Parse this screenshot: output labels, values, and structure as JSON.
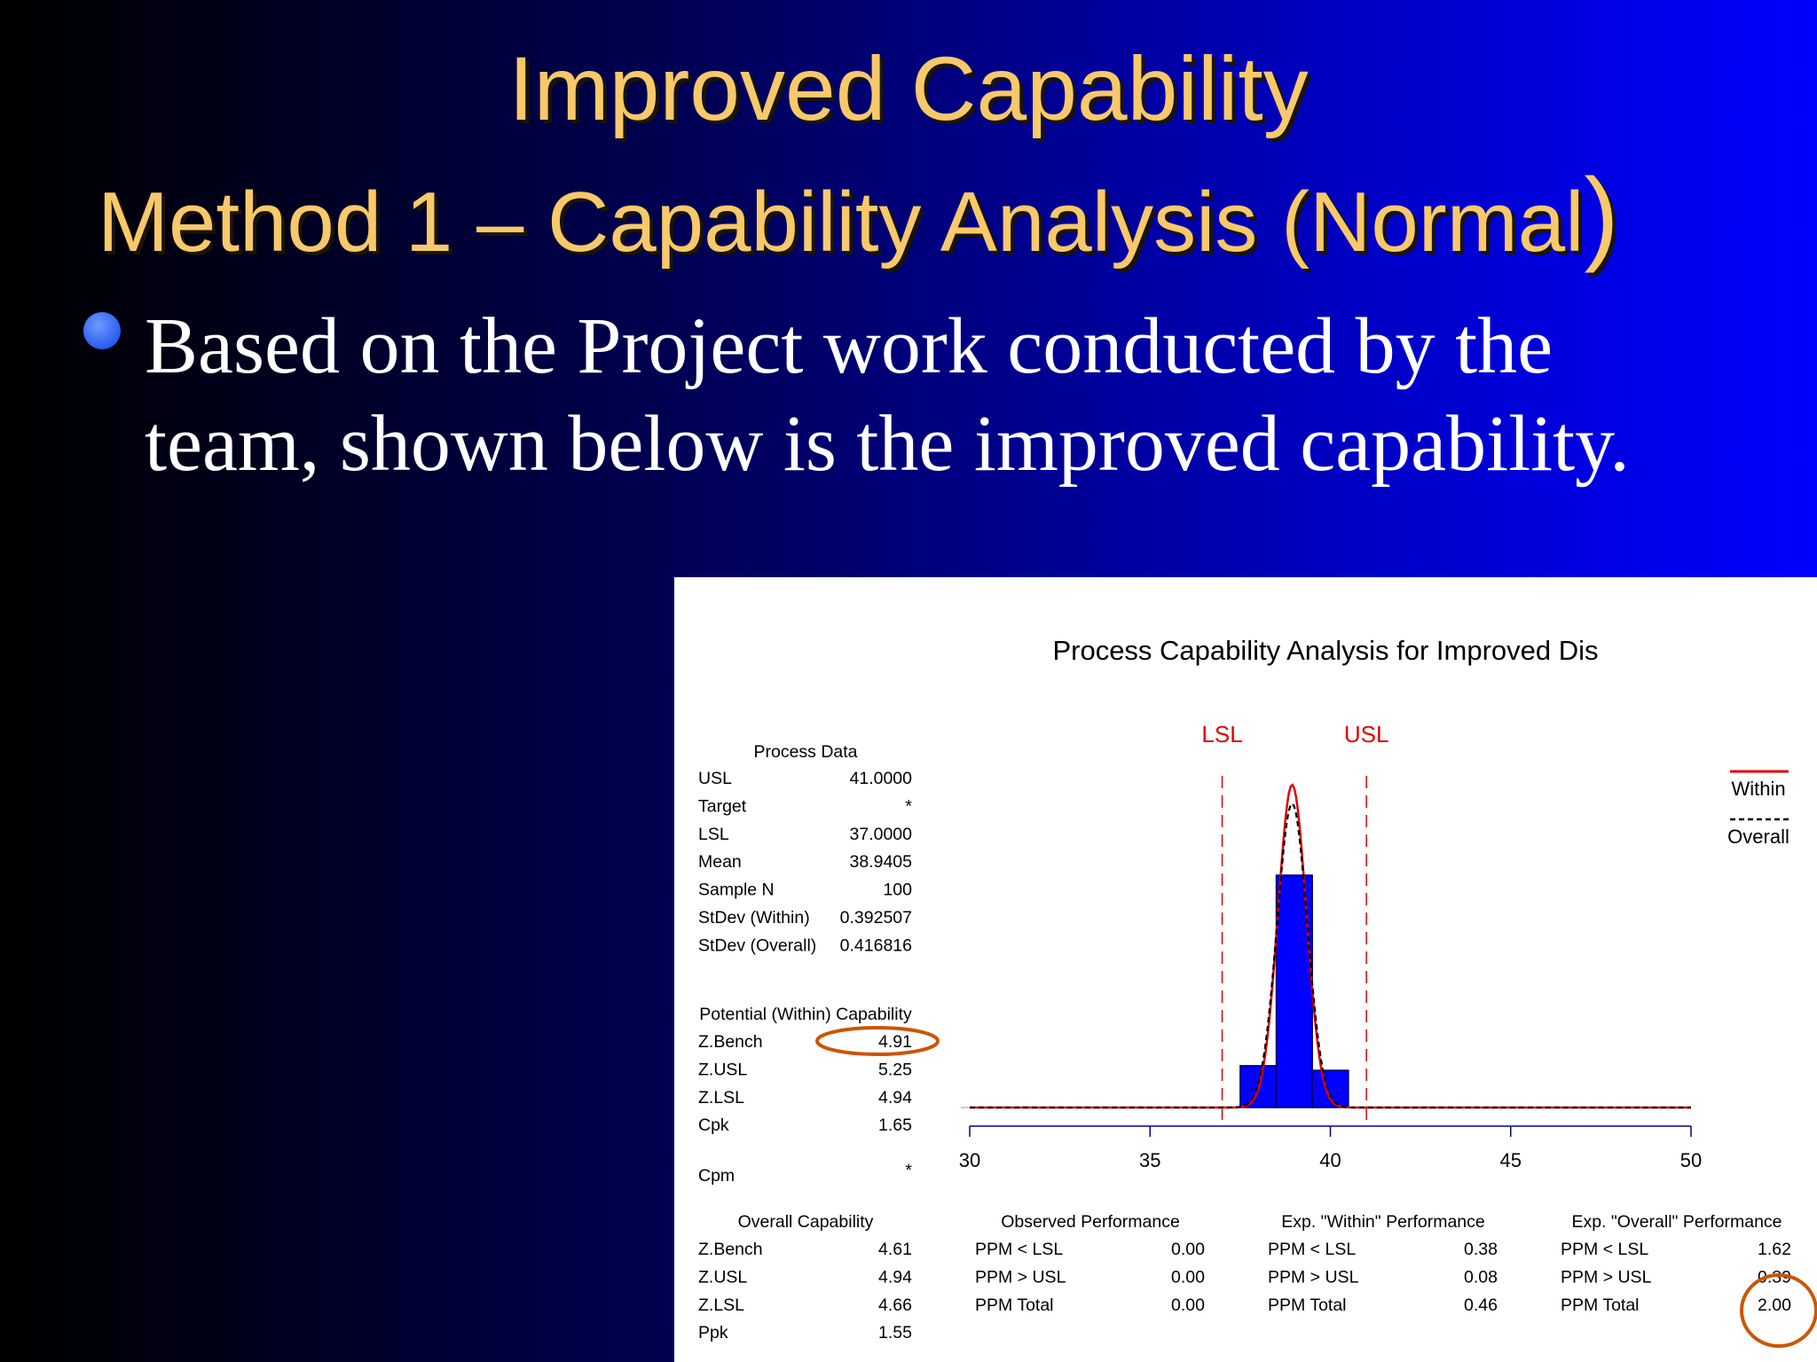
{
  "slide": {
    "title_line1": "Improved Capability",
    "title_line2_text": "Method 1 – Capability Analysis (Normal",
    "title_line2_paren": ")",
    "bullet": "Based on the Project work conducted by the team, shown below is the improved capability."
  },
  "chart_data": {
    "type": "histogram",
    "title": "Process Capability Analysis for Improved Dis",
    "xlim": [
      30,
      50
    ],
    "x_ticks": [
      "30",
      "35",
      "40",
      "45",
      "50"
    ],
    "spec_labels": {
      "lsl": "LSL",
      "usl": "USL"
    },
    "spec_limits": {
      "lsl": 37.0,
      "usl": 41.0
    },
    "histogram_bins": [
      {
        "from": 37.5,
        "to": 38.5,
        "height": 0.18
      },
      {
        "from": 38.5,
        "to": 39.5,
        "height": 1.0
      },
      {
        "from": 39.5,
        "to": 40.5,
        "height": 0.16
      }
    ],
    "curves": {
      "mean": 38.9405,
      "within_sd": 0.392507,
      "overall_sd": 0.416816,
      "curve_peak_height": 1.35
    },
    "legend": [
      "Within",
      "Overall"
    ],
    "colors": {
      "bars": "#0000ff",
      "within": "#e00000",
      "overall": "#000000",
      "spec": "#e00000",
      "axis": "#00008b",
      "highlight": "#cc5500"
    },
    "process_data": {
      "header": "Process Data",
      "rows": [
        [
          "USL",
          "41.0000"
        ],
        [
          "Target",
          "*"
        ],
        [
          "LSL",
          "37.0000"
        ],
        [
          "Mean",
          "38.9405"
        ],
        [
          "Sample N",
          "100"
        ],
        [
          "StDev (Within)",
          "0.392507"
        ],
        [
          "StDev (Overall)",
          "0.416816"
        ]
      ]
    },
    "potential_capability": {
      "header": "Potential (Within) Capability",
      "rows": [
        [
          "Z.Bench",
          "4.91"
        ],
        [
          "Z.USL",
          "5.25"
        ],
        [
          "Z.LSL",
          "4.94"
        ],
        [
          "Cpk",
          "1.65"
        ]
      ],
      "cpm": [
        "Cpm",
        "*"
      ]
    },
    "overall_capability": {
      "header": "Overall Capability",
      "rows": [
        [
          "Z.Bench",
          "4.61"
        ],
        [
          "Z.USL",
          "4.94"
        ],
        [
          "Z.LSL",
          "4.66"
        ],
        [
          "Ppk",
          "1.55"
        ]
      ]
    },
    "observed_performance": {
      "header": "Observed Performance",
      "rows": [
        [
          "PPM < LSL",
          "0.00"
        ],
        [
          "PPM > USL",
          "0.00"
        ],
        [
          "PPM Total",
          "0.00"
        ]
      ]
    },
    "exp_within_performance": {
      "header": "Exp. \"Within\" Performance",
      "rows": [
        [
          "PPM < LSL",
          "0.38"
        ],
        [
          "PPM > USL",
          "0.08"
        ],
        [
          "PPM Total",
          "0.46"
        ]
      ]
    },
    "exp_overall_performance": {
      "header": "Exp. \"Overall\" Performance",
      "rows": [
        [
          "PPM < LSL",
          "1.62"
        ],
        [
          "PPM > USL",
          "0.39"
        ],
        [
          "PPM Total",
          "2.00"
        ]
      ]
    }
  }
}
